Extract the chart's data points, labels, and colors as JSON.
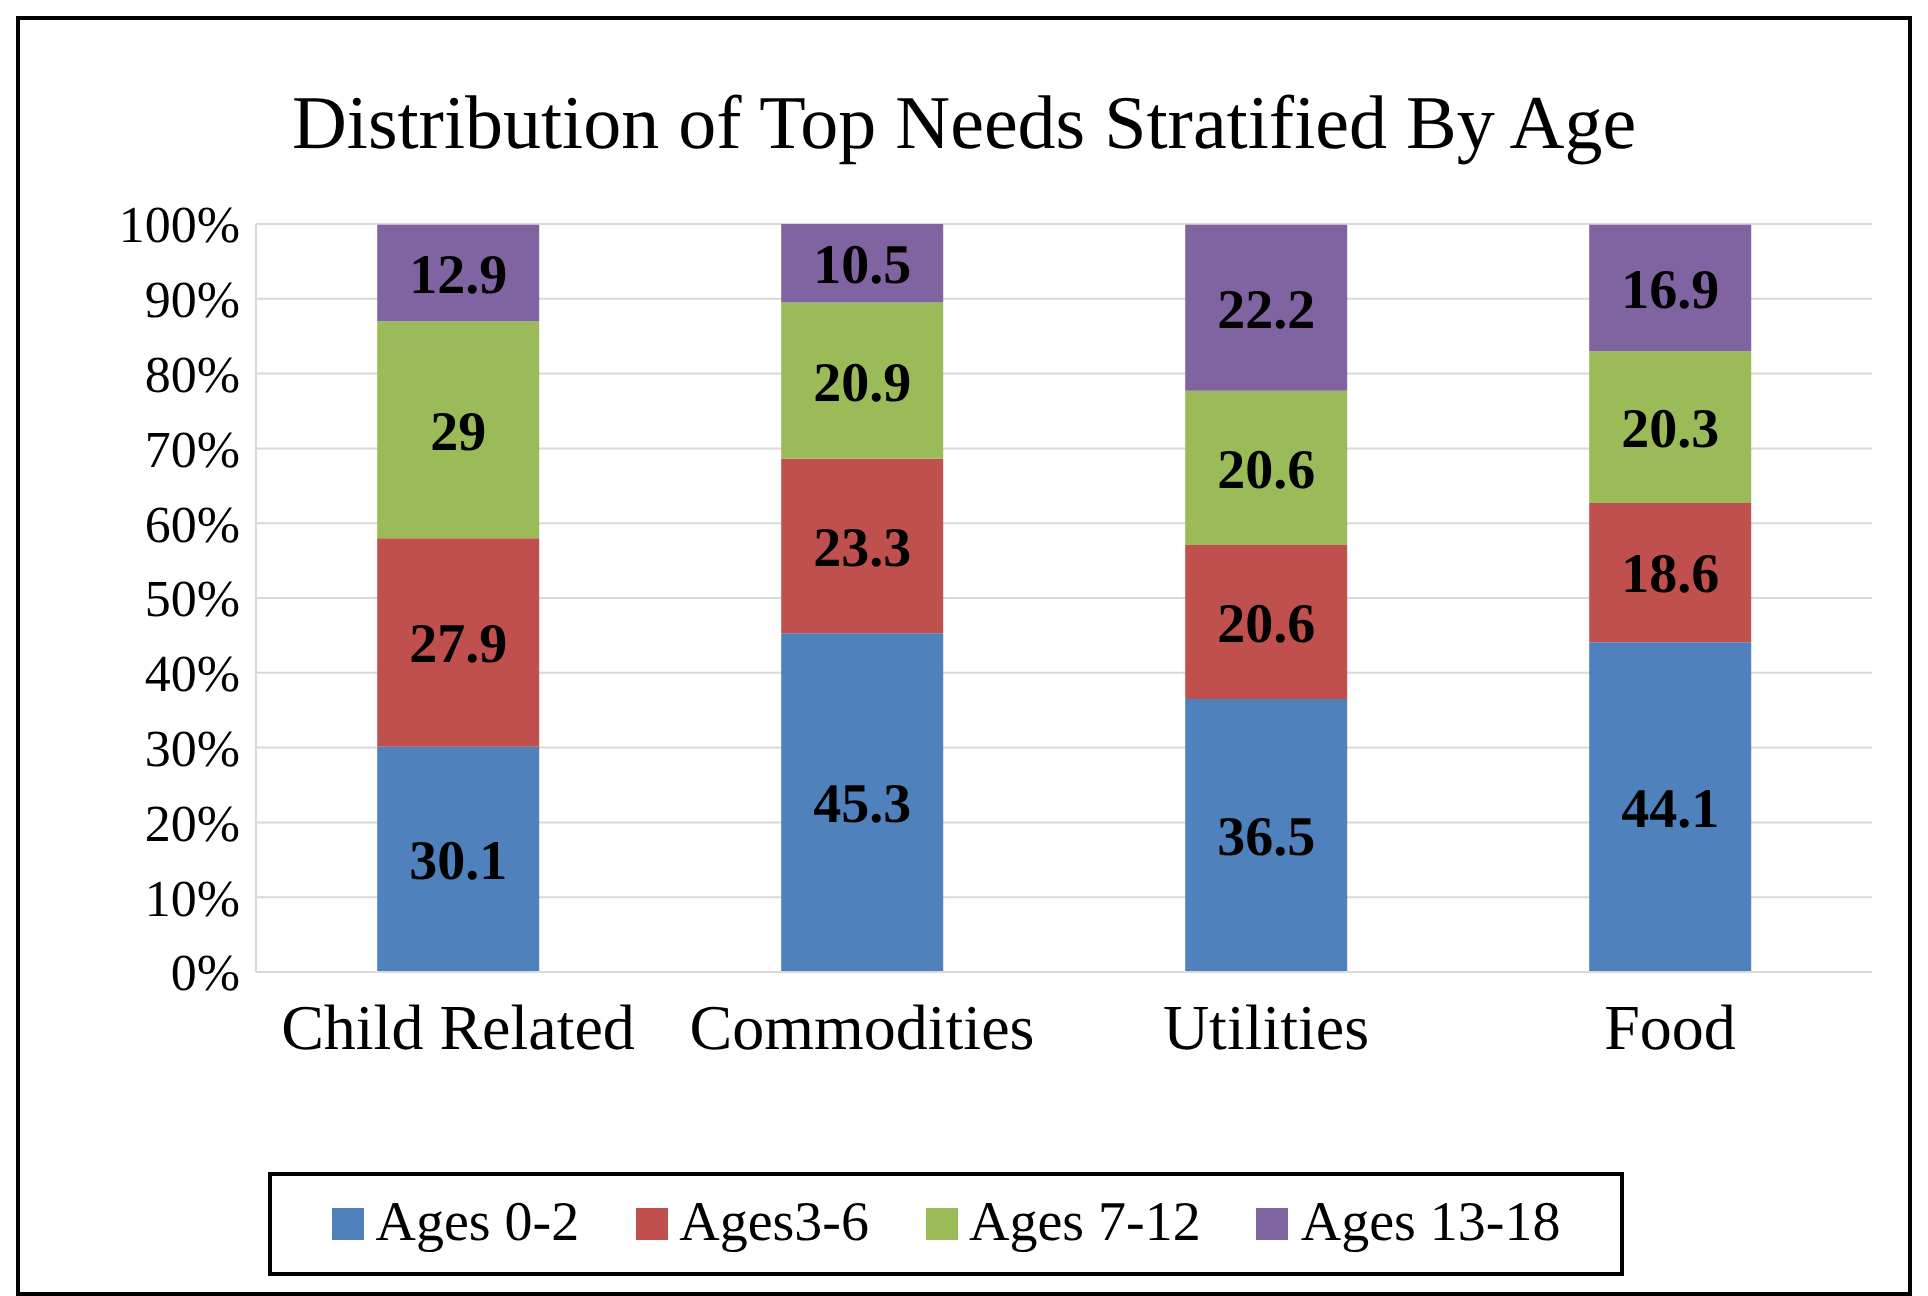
{
  "chart_data": {
    "type": "bar",
    "title": "Distribution of Top Needs Stratified By Age",
    "categories": [
      "Child Related",
      "Commodities",
      "Utilities",
      "Food"
    ],
    "stacked": true,
    "data_labels": true,
    "series": [
      {
        "name": "Ages 0-2",
        "color": "#4f81bd",
        "values": [
          30.1,
          45.3,
          36.5,
          44.1
        ]
      },
      {
        "name": "Ages3-6",
        "color": "#c0504d",
        "values": [
          27.9,
          23.3,
          20.6,
          18.6
        ]
      },
      {
        "name": "Ages 7-12",
        "color": "#9bbb59",
        "values": [
          29,
          20.9,
          20.6,
          20.3
        ]
      },
      {
        "name": "Ages 13-18",
        "color": "#8064a2",
        "values": [
          12.9,
          10.5,
          22.2,
          16.9
        ]
      }
    ],
    "ylim": [
      0,
      100
    ],
    "yticks": [
      {
        "value": 0,
        "label": "0%"
      },
      {
        "value": 10,
        "label": "10%"
      },
      {
        "value": 20,
        "label": "20%"
      },
      {
        "value": 30,
        "label": "30%"
      },
      {
        "value": 40,
        "label": "40%"
      },
      {
        "value": 50,
        "label": "50%"
      },
      {
        "value": 60,
        "label": "60%"
      },
      {
        "value": 70,
        "label": "70%"
      },
      {
        "value": 80,
        "label": "80%"
      },
      {
        "value": 90,
        "label": "90%"
      },
      {
        "value": 100,
        "label": "100%"
      }
    ],
    "grid": "y",
    "legend": "bottom"
  }
}
